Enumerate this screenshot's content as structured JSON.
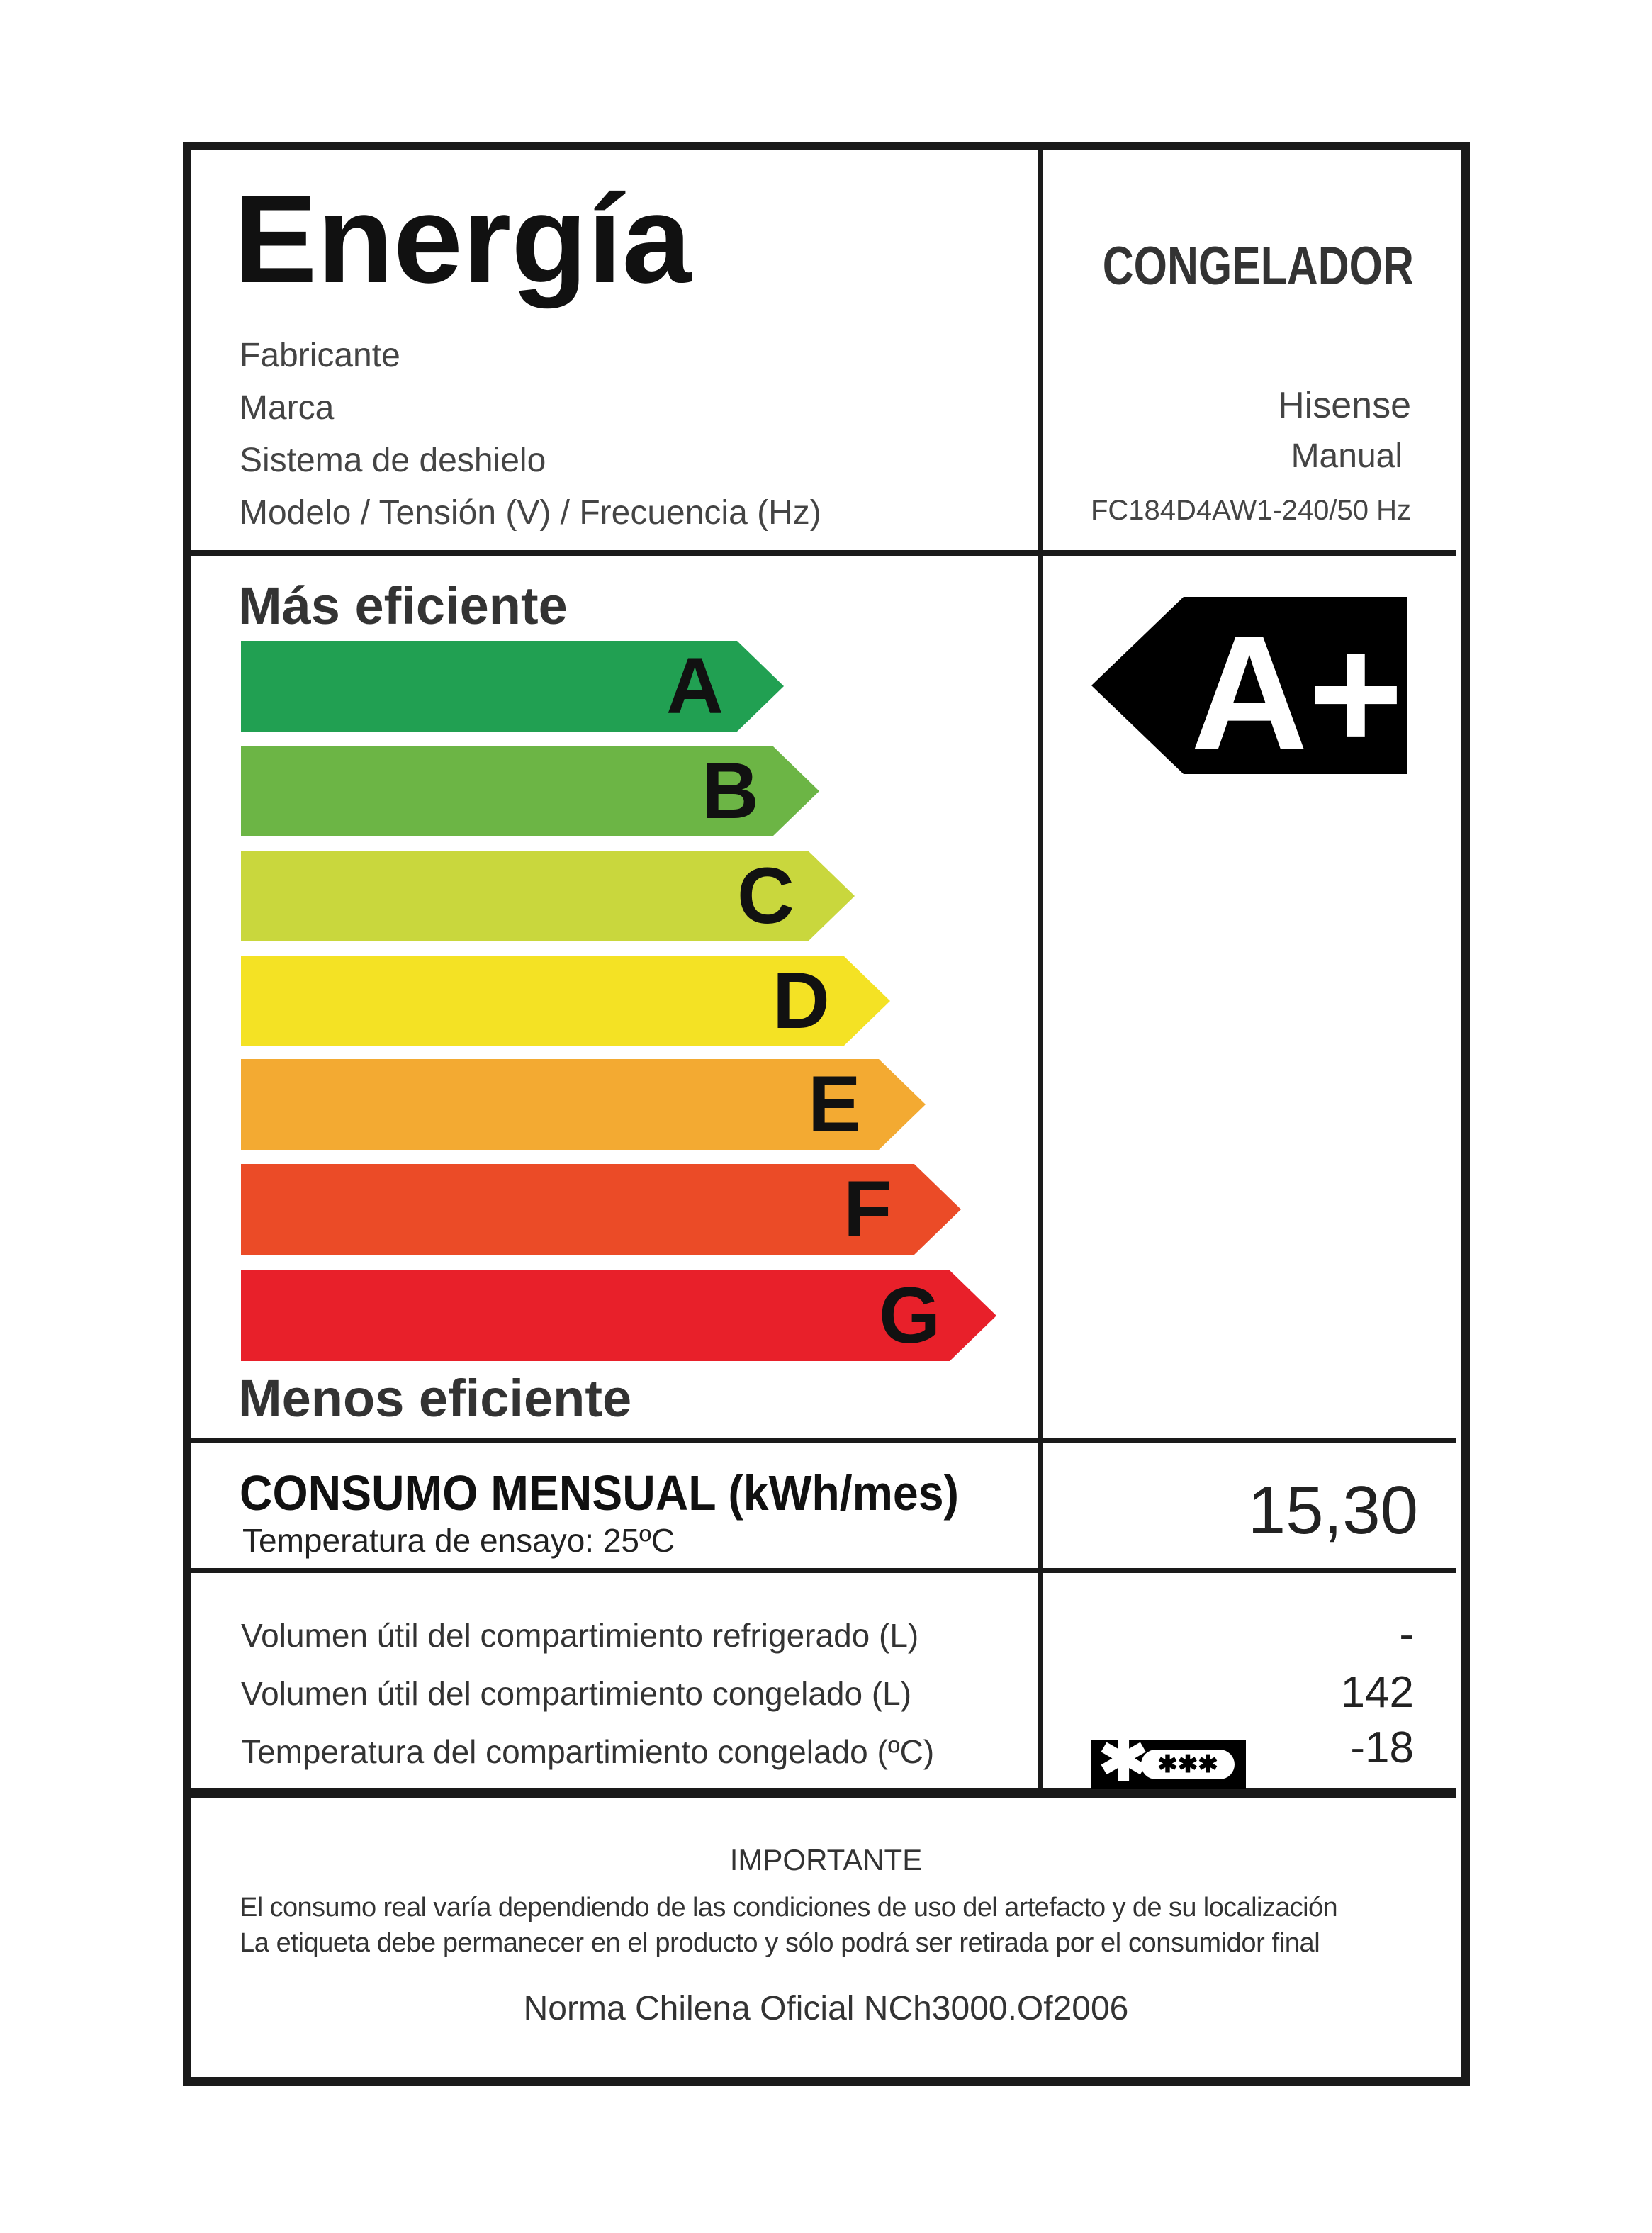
{
  "header": {
    "title": "Energía",
    "category": "CONGELADOR",
    "fields": [
      {
        "label": "Fabricante",
        "value": ""
      },
      {
        "label": "Marca",
        "value": "Hisense"
      },
      {
        "label": "Sistema de deshielo",
        "value": "Manual"
      },
      {
        "label": "Modelo / Tensión (V) / Frecuencia (Hz)",
        "value": "FC184D4AW1-240/50 Hz"
      }
    ]
  },
  "scale": {
    "top_label": "Más eficiente",
    "bottom_label": "Menos eficiente",
    "classes": [
      {
        "letter": "A",
        "color": "#21a052"
      },
      {
        "letter": "B",
        "color": "#6cb545"
      },
      {
        "letter": "C",
        "color": "#c9d73d"
      },
      {
        "letter": "D",
        "color": "#f4e224"
      },
      {
        "letter": "E",
        "color": "#f3aa32"
      },
      {
        "letter": "F",
        "color": "#eb4b27"
      },
      {
        "letter": "G",
        "color": "#e8202a"
      }
    ],
    "rating": "A+",
    "rating_color": "#000000"
  },
  "consumption": {
    "label": "CONSUMO MENSUAL (kWh/mes)",
    "sublabel": "Temperatura de ensayo: 25ºC",
    "value": "15,30"
  },
  "specs": [
    {
      "label": "Volumen útil del compartimiento refrigerado (L)",
      "value": "-"
    },
    {
      "label": "Volumen útil del compartimiento congelado (L)",
      "value": "142"
    },
    {
      "label": "Temperatura del compartimiento congelado (ºC)",
      "value": "-18",
      "icon": "freezer-star-rating-icon"
    }
  ],
  "footer": {
    "heading": "IMPORTANTE",
    "line1": "El consumo real varía dependiendo de las condiciones de uso del artefacto y de su localización",
    "line2": "La etiqueta debe permanecer en el producto y sólo podrá ser retirada por el consumidor final",
    "norm": "Norma Chilena Oficial NCh3000.Of2006"
  }
}
